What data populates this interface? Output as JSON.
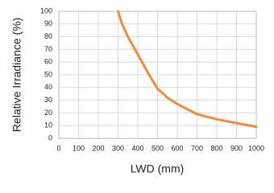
{
  "chart_data": {
    "type": "line",
    "x_label": "LWD (mm)",
    "y_label": "Relative Irradiance (%)",
    "x": [
      300,
      320,
      350,
      400,
      450,
      500,
      550,
      600,
      700,
      800,
      900,
      1000
    ],
    "values": [
      100,
      90,
      80,
      66,
      52,
      39,
      32,
      27,
      19,
      15,
      12,
      9
    ],
    "color": "#f08a3c",
    "xlim": [
      0,
      1000
    ],
    "xticks": [
      0,
      100,
      200,
      300,
      400,
      500,
      600,
      700,
      800,
      900,
      1000
    ],
    "ylim": [
      0,
      100
    ],
    "yticks": [
      0,
      10,
      20,
      30,
      40,
      50,
      60,
      70,
      80,
      90,
      100
    ],
    "grid": true
  }
}
